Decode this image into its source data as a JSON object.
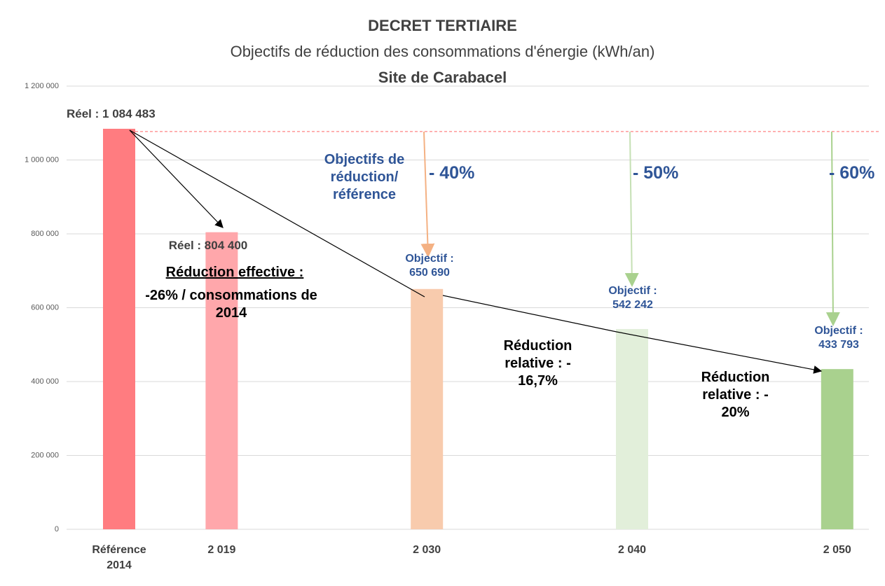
{
  "chart_data": {
    "type": "bar",
    "title": "DECRET TERTIAIRE",
    "subtitle": "Objectifs de réduction des consommations d'énergie (kWh/an)",
    "categories": [
      "Référence 2014",
      "2 019",
      null,
      "2 030",
      null,
      "2 040",
      null,
      "2 050"
    ],
    "values": [
      1084483,
      804400,
      null,
      650690,
      null,
      542242,
      null,
      433793
    ],
    "value_labels": [
      "Réel : 1 084 483",
      "Réel : 804 400",
      null,
      "Objectif : 650 690",
      null,
      "Objectif : 542 242",
      null,
      "Objectif : 433 793"
    ],
    "colors": [
      "#ff7c80",
      "#ffa7ab",
      null,
      "#f8cbad",
      null,
      "#e2efda",
      null,
      "#a9d18e"
    ],
    "ylim": [
      0,
      1200000
    ],
    "yticks": [
      0,
      {
        "value": 200000,
        "label": "200 000"
      },
      {
        "value": 400000,
        "label": "400 000"
      },
      {
        "value": 600000,
        "label": "600 000"
      },
      {
        "value": 800000,
        "label": "800 000"
      },
      {
        "value": 1000000,
        "label": "1 000 000"
      },
      {
        "value": 1200000,
        "label": "1 200 000"
      }
    ],
    "grid": true,
    "annotations": [
      "Site de Carabacel",
      "Réduction effective :",
      "-26% / consommations de 2014",
      "Objectifs de réduction/ référence",
      "- 40%",
      "- 50%",
      "- 60%",
      "Réduction relative : - 16,7%",
      "Réduction relative : - 20%"
    ]
  }
}
